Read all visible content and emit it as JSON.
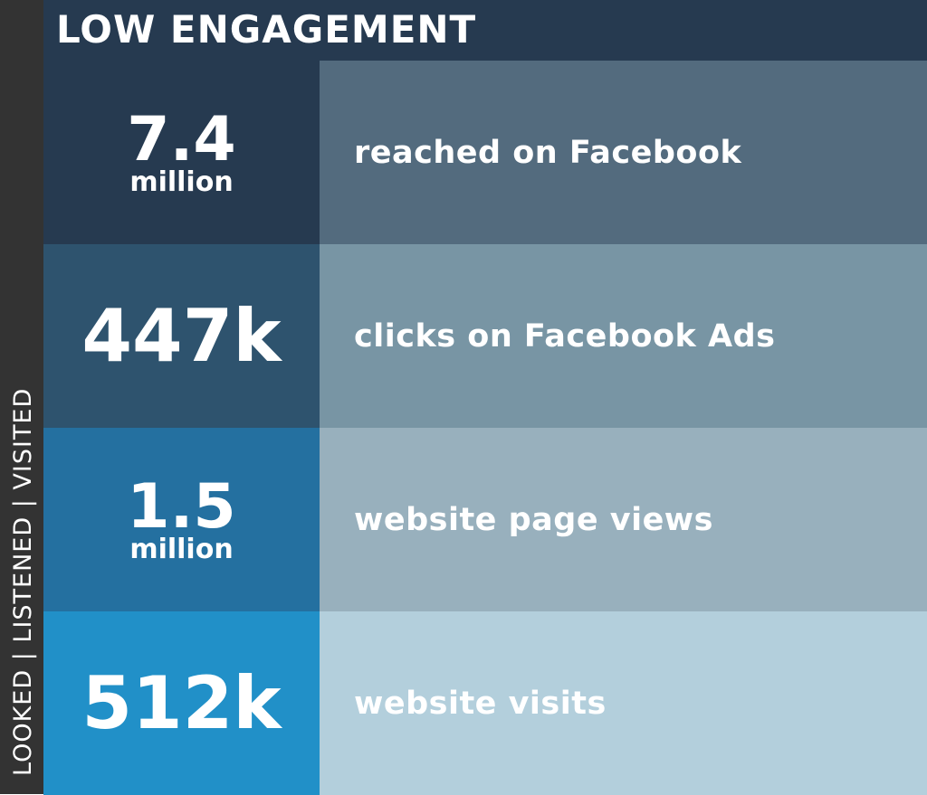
{
  "header": {
    "title": "LOW ENGAGEMENT"
  },
  "side_label": "LOOKED | LISTENED | VISITED",
  "rows": [
    {
      "value": "7.4",
      "unit": "million",
      "description": "reached on Facebook"
    },
    {
      "value": "447k",
      "description": "clicks on Facebook Ads"
    },
    {
      "value": "1.5",
      "unit": "million",
      "description": "website page views"
    },
    {
      "value": "512k",
      "description": "website visits"
    }
  ]
}
